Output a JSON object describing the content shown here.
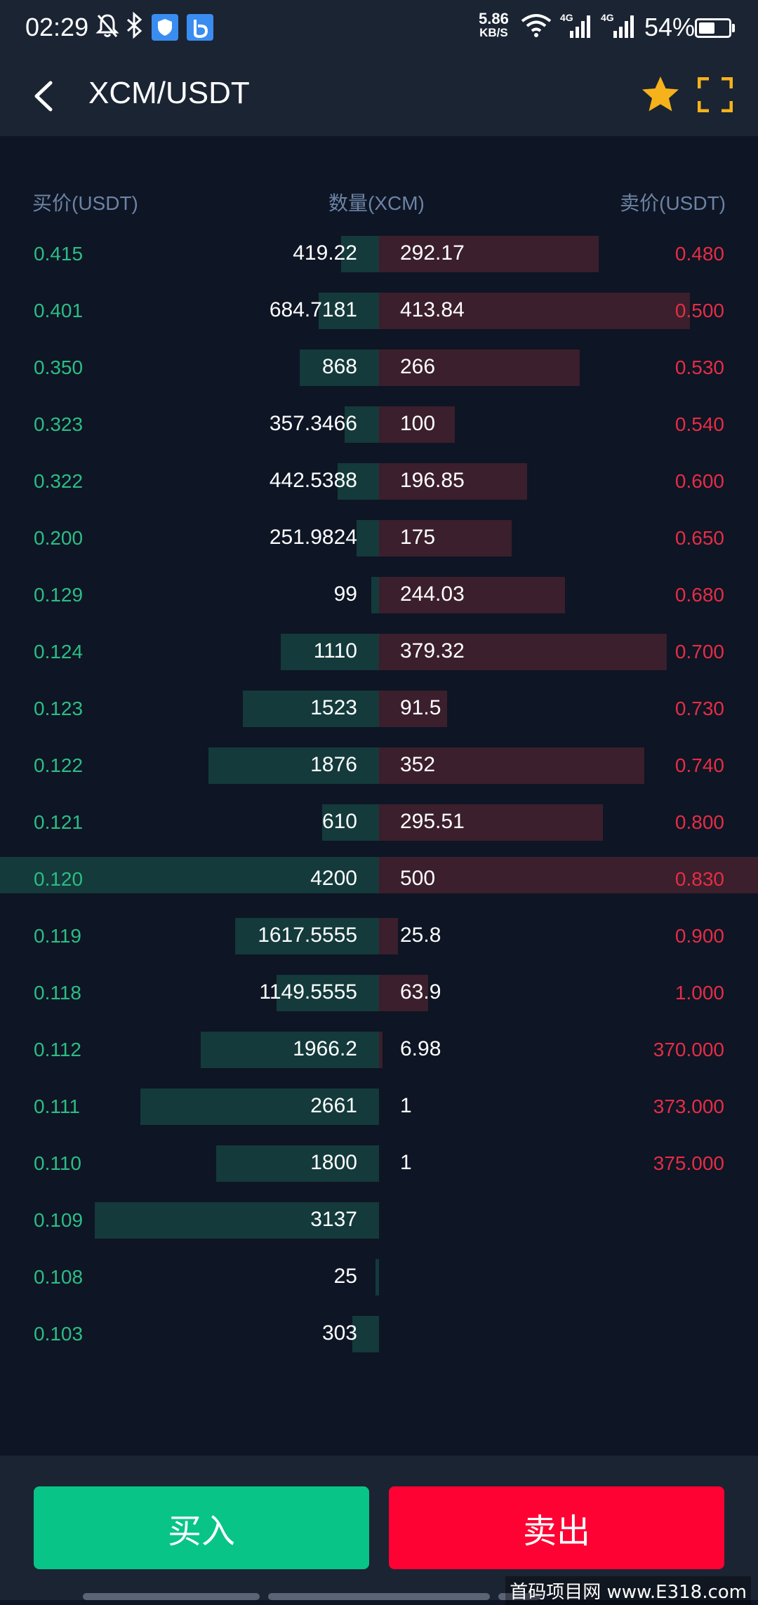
{
  "status_bar": {
    "time": "02:29",
    "speed_value": "5.86",
    "speed_unit": "KB/S",
    "network_1": "4G",
    "network_2": "4G",
    "battery_text": "54%",
    "battery_level": 0.54,
    "icons": [
      "bell-off-icon",
      "bluetooth-icon",
      "shield-app-icon",
      "b-app-icon",
      "wifi-icon",
      "signal-icon",
      "battery-icon"
    ]
  },
  "nav": {
    "title": "XCM/USDT",
    "icons": [
      "back-arrow-icon",
      "star-icon",
      "fullscreen-icon"
    ],
    "star_color": "#f5b21b",
    "fullscreen_color": "#f5b21b"
  },
  "book": {
    "header_buy": "买价(USDT)",
    "header_qty": "数量(XCM)",
    "header_sell": "卖价(USDT)",
    "colors": {
      "buy": "#2bbd84",
      "sell": "#e52d45",
      "buy_bar": "#143a3b",
      "sell_bar": "#3b1f2c"
    },
    "rows": [
      {
        "buy_price": "0.415",
        "buy_qty": "419.22",
        "buy_depth": 0.1,
        "sell_qty": "292.17",
        "sell_depth": 0.58,
        "sell_price": "0.480"
      },
      {
        "buy_price": "0.401",
        "buy_qty": "684.7181",
        "buy_depth": 0.16,
        "sell_qty": "413.84",
        "sell_depth": 0.82,
        "sell_price": "0.500"
      },
      {
        "buy_price": "0.350",
        "buy_qty": "868",
        "buy_depth": 0.21,
        "sell_qty": "266",
        "sell_depth": 0.53,
        "sell_price": "0.530"
      },
      {
        "buy_price": "0.323",
        "buy_qty": "357.3466",
        "buy_depth": 0.09,
        "sell_qty": "100",
        "sell_depth": 0.2,
        "sell_price": "0.540"
      },
      {
        "buy_price": "0.322",
        "buy_qty": "442.5388",
        "buy_depth": 0.11,
        "sell_qty": "196.85",
        "sell_depth": 0.39,
        "sell_price": "0.600"
      },
      {
        "buy_price": "0.200",
        "buy_qty": "251.9824",
        "buy_depth": 0.06,
        "sell_qty": "175",
        "sell_depth": 0.35,
        "sell_price": "0.650"
      },
      {
        "buy_price": "0.129",
        "buy_qty": "99",
        "buy_depth": 0.02,
        "sell_qty": "244.03",
        "sell_depth": 0.49,
        "sell_price": "0.680"
      },
      {
        "buy_price": "0.124",
        "buy_qty": "1110",
        "buy_depth": 0.26,
        "sell_qty": "379.32",
        "sell_depth": 0.76,
        "sell_price": "0.700"
      },
      {
        "buy_price": "0.123",
        "buy_qty": "1523",
        "buy_depth": 0.36,
        "sell_qty": "91.5",
        "sell_depth": 0.18,
        "sell_price": "0.730"
      },
      {
        "buy_price": "0.122",
        "buy_qty": "1876",
        "buy_depth": 0.45,
        "sell_qty": "352",
        "sell_depth": 0.7,
        "sell_price": "0.740"
      },
      {
        "buy_price": "0.121",
        "buy_qty": "610",
        "buy_depth": 0.15,
        "sell_qty": "295.51",
        "sell_depth": 0.59,
        "sell_price": "0.800"
      },
      {
        "buy_price": "0.120",
        "buy_qty": "4200",
        "buy_depth": 1.0,
        "sell_qty": "500",
        "sell_depth": 1.0,
        "sell_price": "0.830"
      },
      {
        "buy_price": "0.119",
        "buy_qty": "1617.5555",
        "buy_depth": 0.38,
        "sell_qty": "25.8",
        "sell_depth": 0.05,
        "sell_price": "0.900"
      },
      {
        "buy_price": "0.118",
        "buy_qty": "1149.5555",
        "buy_depth": 0.27,
        "sell_qty": "63.9",
        "sell_depth": 0.13,
        "sell_price": "1.000"
      },
      {
        "buy_price": "0.112",
        "buy_qty": "1966.2",
        "buy_depth": 0.47,
        "sell_qty": "6.98",
        "sell_depth": 0.01,
        "sell_price": "370.000"
      },
      {
        "buy_price": "0.111",
        "buy_qty": "2661",
        "buy_depth": 0.63,
        "sell_qty": "1",
        "sell_depth": 0.0,
        "sell_price": "373.000"
      },
      {
        "buy_price": "0.110",
        "buy_qty": "1800",
        "buy_depth": 0.43,
        "sell_qty": "1",
        "sell_depth": 0.0,
        "sell_price": "375.000"
      },
      {
        "buy_price": "0.109",
        "buy_qty": "3137",
        "buy_depth": 0.75,
        "sell_qty": "",
        "sell_depth": 0.0,
        "sell_price": ""
      },
      {
        "buy_price": "0.108",
        "buy_qty": "25",
        "buy_depth": 0.01,
        "sell_qty": "",
        "sell_depth": 0.0,
        "sell_price": ""
      },
      {
        "buy_price": "0.103",
        "buy_qty": "303",
        "buy_depth": 0.07,
        "sell_qty": "",
        "sell_depth": 0.0,
        "sell_price": ""
      }
    ]
  },
  "actions": {
    "buy_label": "买入",
    "sell_label": "卖出",
    "buy_color": "#08c486",
    "sell_color": "#fe0233"
  },
  "watermark": "首码项目网 www.E318.com"
}
